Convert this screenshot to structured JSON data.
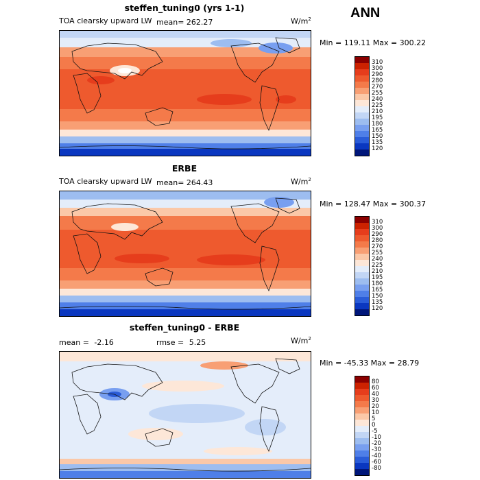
{
  "season_label": "ANN",
  "panels": [
    {
      "title": "steffen_tuning0 (yrs 1-1)",
      "variable": "TOA clearsky upward LW",
      "mean_label": "mean=",
      "mean_value": "262.27",
      "units": "W/m",
      "units_exp": "2",
      "minmax": "Min = 119.11  Max = 300.22",
      "colorbar": {
        "labels": [
          "310",
          "300",
          "290",
          "280",
          "270",
          "255",
          "240",
          "225",
          "210",
          "195",
          "180",
          "165",
          "150",
          "135",
          "120"
        ],
        "colors": [
          "#8b0000",
          "#cc2200",
          "#e63d1c",
          "#ee5a2e",
          "#f47a4a",
          "#f89f74",
          "#fbc8a8",
          "#fde7d8",
          "#e4edfa",
          "#c2d6f5",
          "#9dbdf0",
          "#789ff0",
          "#4f7fe8",
          "#2a5cd8",
          "#0a37c0",
          "#00167a"
        ]
      }
    },
    {
      "title": "ERBE",
      "variable": "TOA clearsky upward LW",
      "mean_label": "mean=",
      "mean_value": "264.43",
      "units": "W/m",
      "units_exp": "2",
      "minmax": "Min = 128.47  Max = 300.37",
      "colorbar": {
        "labels": [
          "310",
          "300",
          "290",
          "280",
          "270",
          "255",
          "240",
          "225",
          "210",
          "195",
          "180",
          "165",
          "150",
          "135",
          "120"
        ],
        "colors": [
          "#8b0000",
          "#cc2200",
          "#e63d1c",
          "#ee5a2e",
          "#f47a4a",
          "#f89f74",
          "#fbc8a8",
          "#fde7d8",
          "#e4edfa",
          "#c2d6f5",
          "#9dbdf0",
          "#789ff0",
          "#4f7fe8",
          "#2a5cd8",
          "#0a37c0",
          "#00167a"
        ]
      }
    },
    {
      "title": "steffen_tuning0 - ERBE",
      "mean_label": "mean =",
      "mean_value": "-2.16",
      "rmse_label": "rmse =",
      "rmse_value": "5.25",
      "units": "W/m",
      "units_exp": "2",
      "minmax": "Min = -45.33  Max =  28.79",
      "colorbar": {
        "labels": [
          "80",
          "60",
          "40",
          "30",
          "20",
          "10",
          "5",
          "0",
          "-5",
          "-10",
          "-20",
          "-30",
          "-40",
          "-60",
          "-80"
        ],
        "colors": [
          "#8b0000",
          "#cc2200",
          "#e63d1c",
          "#ee5a2e",
          "#f47a4a",
          "#f89f74",
          "#fbc8a8",
          "#fde7d8",
          "#e4edfa",
          "#c2d6f5",
          "#9dbdf0",
          "#789ff0",
          "#4f7fe8",
          "#2a5cd8",
          "#0a37c0",
          "#00167a"
        ]
      }
    }
  ]
}
